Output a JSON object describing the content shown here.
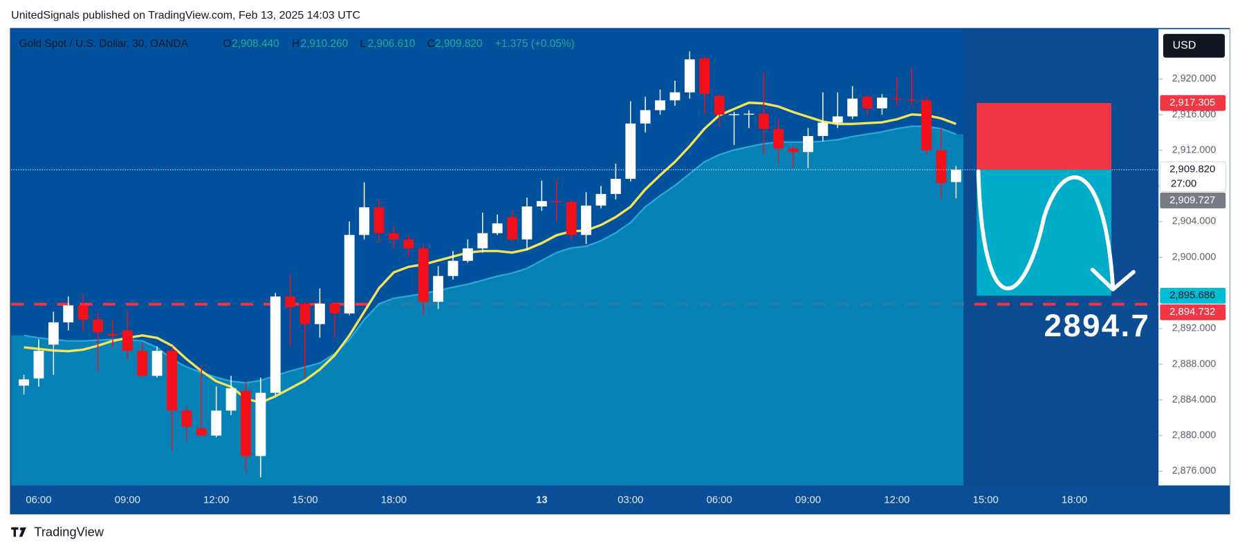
{
  "header": {
    "text": "UnitedSignals published on TradingView.com, Feb 13, 2025 14:03 UTC"
  },
  "chart_data": {
    "type": "candlestick",
    "symbol": "Gold Spot / U.S. Dollar, 30, OANDA",
    "ohlc_legend": [
      {
        "key": "O",
        "value": "2,908.440"
      },
      {
        "key": "H",
        "value": "2,910.260"
      },
      {
        "key": "L",
        "value": "2,906.610"
      },
      {
        "key": "C",
        "value": "2,909.820"
      }
    ],
    "change": "+1.375 (+0.05%)",
    "currency": "USD",
    "up_color": "#ffffff",
    "down_color": "#f2111b",
    "open": [
      2885.6,
      2886.4,
      2890.2,
      2892.7,
      2894.6,
      2893.0,
      2891.4,
      2891.8,
      2889.5,
      2886.7,
      2889.5,
      2882.8,
      2880.8,
      2880.0,
      2882.8,
      2885.0,
      2877.7,
      2884.8,
      2895.6,
      2894.8,
      2892.5,
      2894.8,
      2893.7,
      2902.5,
      2905.6,
      2902.7,
      2902.0,
      2901.0,
      2895.0,
      2897.9,
      2899.6,
      2901.0,
      2902.7,
      2904.5,
      2902.0,
      2905.7,
      2906.3,
      2906.2,
      2902.5,
      2905.8,
      2907.1,
      2908.8,
      2915.0,
      2916.5,
      2917.6,
      2918.5,
      2922.3,
      2918.1,
      2916.0,
      2916.0,
      2916.1,
      2914.4,
      2912.2,
      2911.8,
      2913.6,
      2915.1,
      2915.8,
      2918.0,
      2916.7,
      2917.8,
      2917.7,
      2917.6,
      2912.0,
      2908.44
    ],
    "high": [
      2886.8,
      2890.8,
      2893.9,
      2895.6,
      2895.8,
      2893.8,
      2893.0,
      2894.0,
      2890.3,
      2890.0,
      2890.0,
      2883.3,
      2888.0,
      2885.5,
      2886.7,
      2886.0,
      2886.5,
      2896.0,
      2898.0,
      2895.0,
      2896.5,
      2895.0,
      2904.0,
      2908.4,
      2906.5,
      2903.5,
      2902.5,
      2901.5,
      2899.0,
      2900.7,
      2902.0,
      2905.0,
      2904.8,
      2905.2,
      2906.7,
      2908.6,
      2908.6,
      2906.5,
      2907.3,
      2908.0,
      2910.5,
      2917.5,
      2918.0,
      2918.8,
      2919.8,
      2923.1,
      2922.5,
      2918.3,
      2916.3,
      2916.5,
      2920.7,
      2915.5,
      2912.5,
      2914.5,
      2918.5,
      2918.5,
      2919.2,
      2918.2,
      2918.3,
      2920.2,
      2921.3,
      2918.0,
      2914.5,
      2910.26
    ],
    "low": [
      2884.6,
      2885.5,
      2886.8,
      2891.8,
      2891.6,
      2887.2,
      2889.9,
      2888.6,
      2886.5,
      2886.5,
      2878.4,
      2879.3,
      2879.9,
      2879.8,
      2882.3,
      2875.9,
      2875.3,
      2884.5,
      2890.0,
      2886.5,
      2891.0,
      2891.0,
      2893.5,
      2902.0,
      2901.7,
      2901.0,
      2900.0,
      2893.5,
      2894.2,
      2897.5,
      2899.4,
      2900.5,
      2902.5,
      2901.8,
      2900.8,
      2905.2,
      2904.0,
      2902.0,
      2901.5,
      2905.5,
      2906.5,
      2908.5,
      2914.0,
      2916.0,
      2917.0,
      2917.8,
      2916.0,
      2914.7,
      2912.6,
      2914.5,
      2911.5,
      2910.5,
      2910.0,
      2910.0,
      2913.0,
      2914.5,
      2915.5,
      2916.0,
      2916.0,
      2917.0,
      2917.0,
      2911.5,
      2906.6,
      2906.61
    ],
    "close": [
      2886.3,
      2889.5,
      2892.7,
      2894.6,
      2893.0,
      2891.6,
      2891.2,
      2889.5,
      2886.7,
      2889.5,
      2882.8,
      2881.0,
      2880.0,
      2882.8,
      2885.3,
      2877.7,
      2884.8,
      2895.6,
      2894.4,
      2892.5,
      2894.8,
      2893.7,
      2902.5,
      2905.6,
      2902.7,
      2902.0,
      2901.0,
      2895.0,
      2897.9,
      2899.6,
      2901.0,
      2902.7,
      2903.8,
      2902.0,
      2905.7,
      2906.3,
      2906.2,
      2902.5,
      2905.8,
      2907.1,
      2908.8,
      2915.0,
      2916.5,
      2917.6,
      2918.5,
      2922.2,
      2918.3,
      2916.0,
      2916.05,
      2916.1,
      2914.4,
      2912.2,
      2911.8,
      2913.6,
      2915.1,
      2915.8,
      2917.8,
      2916.7,
      2917.9,
      2917.7,
      2917.6,
      2912.0,
      2908.3,
      2909.82
    ],
    "series": [
      {
        "color": "#0787b8",
        "fill": true,
        "values": [
          2891.23,
          2890.96,
          2890.78,
          2890.61,
          2890.61,
          2890.7,
          2890.78,
          2890.78,
          2890.61,
          2889.9,
          2888.57,
          2887.68,
          2887.07,
          2886.53,
          2886.09,
          2885.91,
          2886.18,
          2886.71,
          2887.24,
          2887.68,
          2888.13,
          2889.19,
          2890.78,
          2893.0,
          2894.77,
          2895.39,
          2895.65,
          2895.92,
          2896.27,
          2896.63,
          2896.98,
          2897.42,
          2897.87,
          2898.22,
          2898.75,
          2899.64,
          2900.52,
          2901.05,
          2901.23,
          2901.85,
          2902.74,
          2903.89,
          2905.66,
          2906.9,
          2908.05,
          2909.38,
          2910.7,
          2911.5,
          2912.03,
          2912.39,
          2912.74,
          2912.92,
          2912.92,
          2912.92,
          2913.01,
          2913.18,
          2913.54,
          2913.8,
          2914.07,
          2914.42,
          2914.69,
          2914.69,
          2914.42,
          2913.8
        ]
      },
      {
        "color": "#f2e35a",
        "values": [
          2889.9,
          2889.72,
          2889.54,
          2889.46,
          2889.63,
          2890.08,
          2890.61,
          2890.96,
          2891.23,
          2890.96,
          2890.08,
          2888.57,
          2887.24,
          2886.09,
          2885.47,
          2884.14,
          2883.69,
          2884.41,
          2885.29,
          2886.18,
          2887.42,
          2889.01,
          2891.23,
          2893.88,
          2896.54,
          2898.31,
          2898.93,
          2899.19,
          2899.64,
          2900.08,
          2900.52,
          2900.7,
          2900.7,
          2900.52,
          2900.88,
          2901.58,
          2902.47,
          2902.91,
          2903.0,
          2903.62,
          2904.51,
          2905.66,
          2907.61,
          2909.2,
          2910.7,
          2912.47,
          2914.42,
          2915.93,
          2916.64,
          2917.34,
          2917.26,
          2916.9,
          2916.28,
          2915.75,
          2915.22,
          2914.95,
          2914.95,
          2915.04,
          2915.13,
          2915.48,
          2916.02,
          2915.93,
          2915.57,
          2914.95
        ]
      }
    ],
    "xlim": [
      -0.86,
      76.68
    ],
    "xticks": [
      {
        "value": 1,
        "label": "06:00"
      },
      {
        "value": 7,
        "label": "09:00"
      },
      {
        "value": 13,
        "label": "12:00"
      },
      {
        "value": 19,
        "label": "15:00"
      },
      {
        "value": 25,
        "label": "18:00"
      },
      {
        "value": 35,
        "label": "13"
      },
      {
        "value": 41,
        "label": "03:00"
      },
      {
        "value": 47,
        "label": "06:00"
      },
      {
        "value": 53,
        "label": "09:00"
      },
      {
        "value": 59,
        "label": "12:00"
      },
      {
        "value": 65,
        "label": "15:00"
      },
      {
        "value": 71,
        "label": "18:00"
      }
    ],
    "ylim": [
      2874.4,
      2925.58
    ],
    "yticks": [
      {
        "value": 2876,
        "label": "2,876.000"
      },
      {
        "value": 2880,
        "label": "2,880.000"
      },
      {
        "value": 2884,
        "label": "2,884.000"
      },
      {
        "value": 2888,
        "label": "2,888.000"
      },
      {
        "value": 2892,
        "label": "2,892.000"
      },
      {
        "value": 2896,
        "label": "2,896.000"
      },
      {
        "value": 2900,
        "label": "2,900.000"
      },
      {
        "value": 2904,
        "label": "2,904.000"
      },
      {
        "value": 2908,
        "label": "2,908.000"
      },
      {
        "value": 2912,
        "label": "2,912.000"
      },
      {
        "value": 2916,
        "label": "2,916.000"
      },
      {
        "value": 2920,
        "label": "2,920.000"
      }
    ],
    "markers": [
      {
        "value": 2917.305,
        "label": "2,917.305",
        "color": "#f23645"
      },
      {
        "value": 2909.82,
        "label": "2,909.820",
        "sublabel": "27:00",
        "color": "#ffffff",
        "line": "dotted"
      },
      {
        "value": 2909.727,
        "label": "2,909.727",
        "color": "#787b86"
      },
      {
        "value": 2895.686,
        "label": "2,895.686",
        "color": "#00bcd4"
      },
      {
        "value": 2894.732,
        "label": "2,894.732",
        "color": "#f23645",
        "line": "dashed"
      }
    ],
    "position": {
      "start": 64.4,
      "end": 73.5,
      "entry": 2909.82,
      "stop": 2917.305,
      "target": 2895.686,
      "stop_color": "#f23645",
      "target_color": "#00acc8",
      "label": "2894.7"
    }
  },
  "footer": {
    "brand": "TradingView"
  }
}
